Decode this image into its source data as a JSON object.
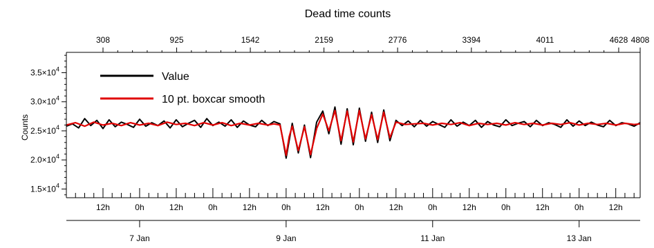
{
  "chart_data": {
    "type": "line",
    "title": "Dead time counts",
    "ylabel": "Counts",
    "ylim": [
      13500,
      38500
    ],
    "y_ticks": [
      {
        "value": 15000,
        "mantissa": "1.5×10",
        "exp": "4"
      },
      {
        "value": 20000,
        "mantissa": "2.0×10",
        "exp": "4"
      },
      {
        "value": 25000,
        "mantissa": "2.5×10",
        "exp": "4"
      },
      {
        "value": 30000,
        "mantissa": "3.0×10",
        "exp": "4"
      },
      {
        "value": 35000,
        "mantissa": "3.5×10",
        "exp": "4"
      }
    ],
    "top_axis": {
      "range": [
        1,
        4808
      ],
      "tick_labels": [
        "308",
        "925",
        "1542",
        "2159",
        "2776",
        "3394",
        "4011",
        "4628",
        "4808"
      ]
    },
    "x_time_range_hours": [
      0,
      188
    ],
    "hour_labels": [
      {
        "hour": 12,
        "label": "12h"
      },
      {
        "hour": 24,
        "label": "0h"
      },
      {
        "hour": 36,
        "label": "12h"
      },
      {
        "hour": 48,
        "label": "0h"
      },
      {
        "hour": 60,
        "label": "12h"
      },
      {
        "hour": 72,
        "label": "0h"
      },
      {
        "hour": 84,
        "label": "12h"
      },
      {
        "hour": 96,
        "label": "0h"
      },
      {
        "hour": 108,
        "label": "12h"
      },
      {
        "hour": 120,
        "label": "0h"
      },
      {
        "hour": 132,
        "label": "12h"
      },
      {
        "hour": 144,
        "label": "0h"
      },
      {
        "hour": 156,
        "label": "12h"
      },
      {
        "hour": 168,
        "label": "0h"
      },
      {
        "hour": 180,
        "label": "12h"
      }
    ],
    "day_labels": [
      {
        "hour": 24,
        "label": "7 Jan"
      },
      {
        "hour": 72,
        "label": "9 Jan"
      },
      {
        "hour": 120,
        "label": "11 Jan"
      },
      {
        "hour": 168,
        "label": "13 Jan"
      }
    ],
    "series": [
      {
        "name": "Value",
        "color": "#000000",
        "points": [
          [
            0,
            25800
          ],
          [
            2,
            26200
          ],
          [
            4,
            25500
          ],
          [
            6,
            27100
          ],
          [
            8,
            25900
          ],
          [
            10,
            26800
          ],
          [
            12,
            25400
          ],
          [
            14,
            26900
          ],
          [
            16,
            25700
          ],
          [
            18,
            26500
          ],
          [
            20,
            26100
          ],
          [
            22,
            25600
          ],
          [
            24,
            27000
          ],
          [
            26,
            25800
          ],
          [
            28,
            26400
          ],
          [
            30,
            25900
          ],
          [
            32,
            26700
          ],
          [
            34,
            25500
          ],
          [
            36,
            26900
          ],
          [
            38,
            25700
          ],
          [
            40,
            26300
          ],
          [
            42,
            26800
          ],
          [
            44,
            25600
          ],
          [
            46,
            27100
          ],
          [
            48,
            25900
          ],
          [
            50,
            26500
          ],
          [
            52,
            25800
          ],
          [
            54,
            26900
          ],
          [
            56,
            25600
          ],
          [
            58,
            26700
          ],
          [
            60,
            26000
          ],
          [
            62,
            25700
          ],
          [
            64,
            26800
          ],
          [
            66,
            25900
          ],
          [
            68,
            26600
          ],
          [
            70,
            26200
          ],
          [
            72,
            20300
          ],
          [
            74,
            26300
          ],
          [
            76,
            21200
          ],
          [
            78,
            26000
          ],
          [
            80,
            20400
          ],
          [
            82,
            26500
          ],
          [
            84,
            28400
          ],
          [
            86,
            24500
          ],
          [
            88,
            29100
          ],
          [
            90,
            22700
          ],
          [
            92,
            28800
          ],
          [
            94,
            22600
          ],
          [
            96,
            28900
          ],
          [
            98,
            23200
          ],
          [
            100,
            28200
          ],
          [
            102,
            23000
          ],
          [
            104,
            28600
          ],
          [
            106,
            23300
          ],
          [
            108,
            26800
          ],
          [
            110,
            25900
          ],
          [
            112,
            26700
          ],
          [
            114,
            25700
          ],
          [
            116,
            26800
          ],
          [
            118,
            25800
          ],
          [
            120,
            26600
          ],
          [
            122,
            26100
          ],
          [
            124,
            25600
          ],
          [
            126,
            26900
          ],
          [
            128,
            25800
          ],
          [
            130,
            26500
          ],
          [
            132,
            25900
          ],
          [
            134,
            26800
          ],
          [
            136,
            25600
          ],
          [
            138,
            26600
          ],
          [
            140,
            26000
          ],
          [
            142,
            25700
          ],
          [
            144,
            26900
          ],
          [
            146,
            25900
          ],
          [
            148,
            26300
          ],
          [
            150,
            26600
          ],
          [
            152,
            25700
          ],
          [
            154,
            26800
          ],
          [
            156,
            25900
          ],
          [
            158,
            26400
          ],
          [
            160,
            26100
          ],
          [
            162,
            25600
          ],
          [
            164,
            26900
          ],
          [
            166,
            25800
          ],
          [
            168,
            26700
          ],
          [
            170,
            25900
          ],
          [
            172,
            26500
          ],
          [
            174,
            26000
          ],
          [
            176,
            25700
          ],
          [
            178,
            26800
          ],
          [
            180,
            25900
          ],
          [
            182,
            26400
          ],
          [
            184,
            26200
          ],
          [
            186,
            25800
          ],
          [
            188,
            26400
          ]
        ]
      },
      {
        "name": "10 pt. boxcar smooth",
        "color": "#e00000",
        "points": [
          [
            0,
            26000
          ],
          [
            3,
            26400
          ],
          [
            6,
            25800
          ],
          [
            9,
            26500
          ],
          [
            12,
            26000
          ],
          [
            15,
            26300
          ],
          [
            18,
            25900
          ],
          [
            21,
            26400
          ],
          [
            24,
            26000
          ],
          [
            27,
            26300
          ],
          [
            30,
            25900
          ],
          [
            33,
            26500
          ],
          [
            36,
            26100
          ],
          [
            39,
            26300
          ],
          [
            42,
            25900
          ],
          [
            45,
            26400
          ],
          [
            48,
            26000
          ],
          [
            51,
            26400
          ],
          [
            54,
            25900
          ],
          [
            57,
            26300
          ],
          [
            60,
            26000
          ],
          [
            63,
            26300
          ],
          [
            66,
            26000
          ],
          [
            68,
            26200
          ],
          [
            70,
            26000
          ],
          [
            72,
            20800
          ],
          [
            73,
            24000
          ],
          [
            74,
            25800
          ],
          [
            76,
            21600
          ],
          [
            78,
            25700
          ],
          [
            80,
            20900
          ],
          [
            82,
            25400
          ],
          [
            84,
            27900
          ],
          [
            86,
            25000
          ],
          [
            88,
            28500
          ],
          [
            90,
            23300
          ],
          [
            92,
            28400
          ],
          [
            94,
            23100
          ],
          [
            96,
            28500
          ],
          [
            98,
            23600
          ],
          [
            100,
            27800
          ],
          [
            102,
            23500
          ],
          [
            104,
            28200
          ],
          [
            106,
            23800
          ],
          [
            108,
            26500
          ],
          [
            111,
            26100
          ],
          [
            114,
            26200
          ],
          [
            117,
            26300
          ],
          [
            120,
            26000
          ],
          [
            123,
            26300
          ],
          [
            126,
            26100
          ],
          [
            129,
            26400
          ],
          [
            132,
            25900
          ],
          [
            135,
            26300
          ],
          [
            138,
            26100
          ],
          [
            141,
            26300
          ],
          [
            144,
            26000
          ],
          [
            147,
            26400
          ],
          [
            150,
            26100
          ],
          [
            153,
            26300
          ],
          [
            156,
            26000
          ],
          [
            159,
            26300
          ],
          [
            162,
            26100
          ],
          [
            165,
            26400
          ],
          [
            168,
            26000
          ],
          [
            171,
            26300
          ],
          [
            174,
            26100
          ],
          [
            177,
            26300
          ],
          [
            180,
            26000
          ],
          [
            183,
            26300
          ],
          [
            186,
            26100
          ],
          [
            188,
            26200
          ]
        ]
      }
    ],
    "legend": {
      "placement": "top-left"
    }
  }
}
